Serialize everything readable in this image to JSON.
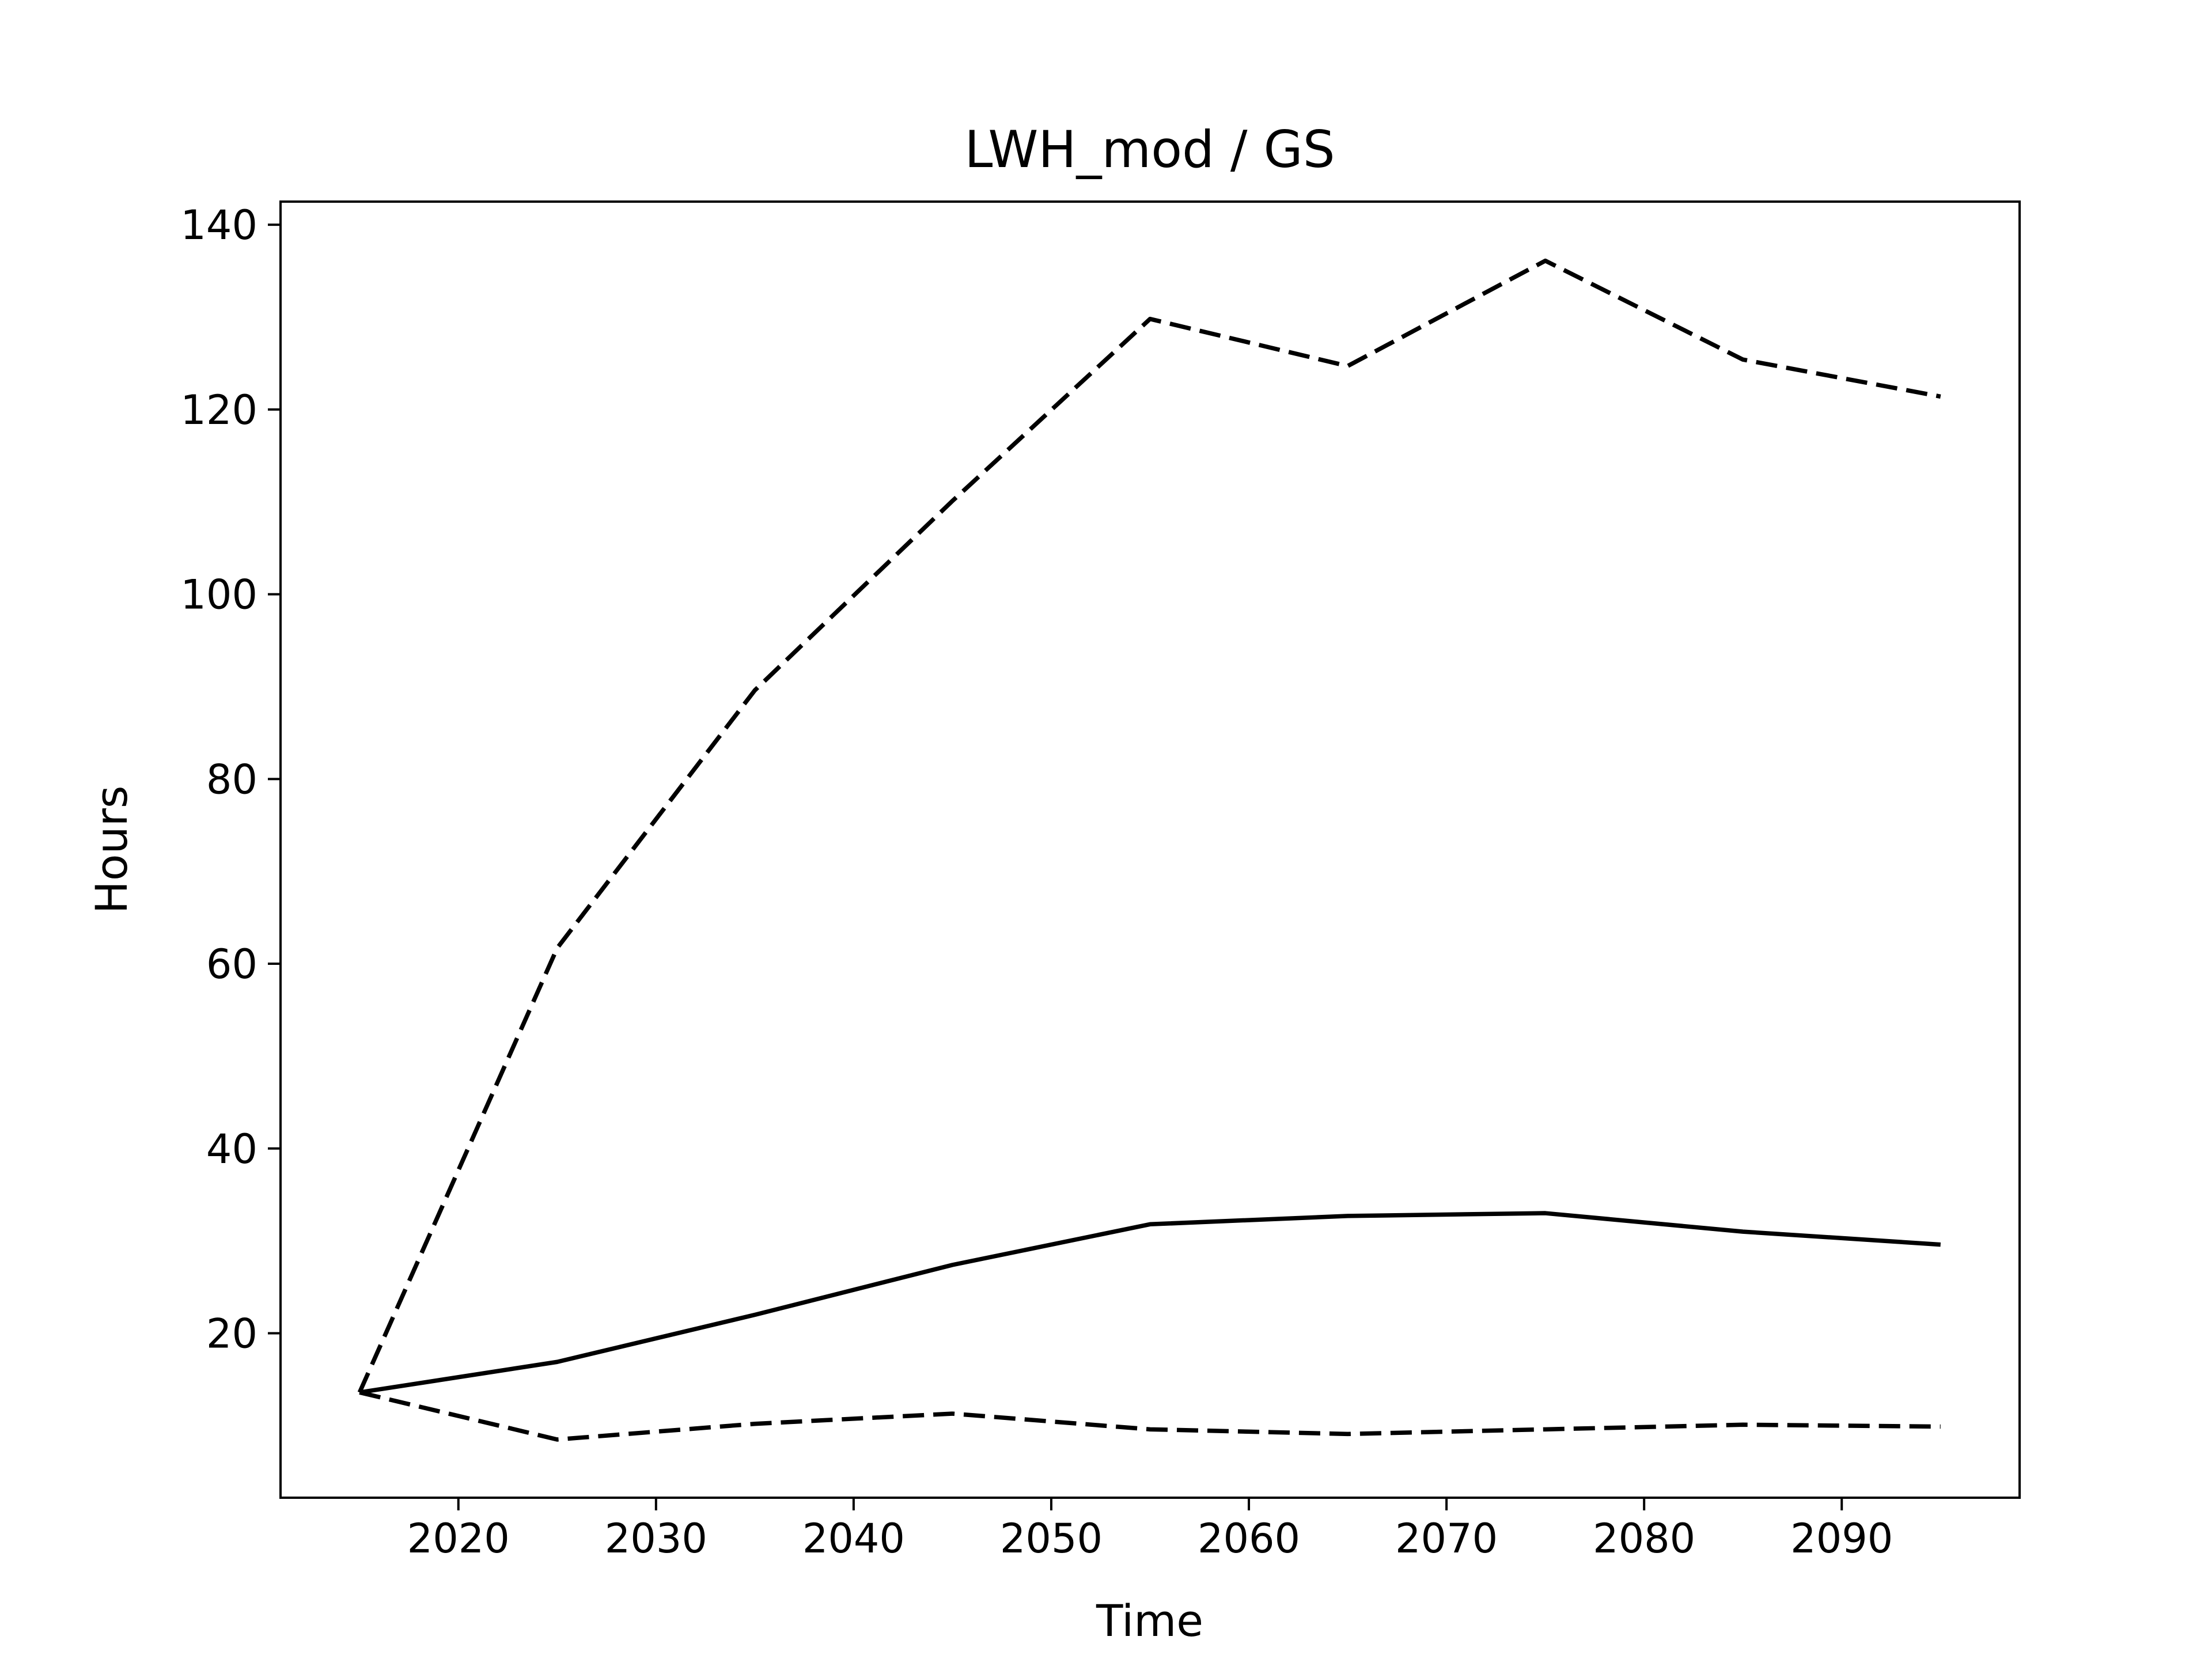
{
  "chart_data": {
    "type": "line",
    "title": "LWH_mod / GS",
    "x_label": "Time",
    "y_label": "Hours",
    "x": [
      2015,
      2025,
      2035,
      2045,
      2055,
      2065,
      2075,
      2085,
      2095
    ],
    "series": [
      {
        "color": "#000000",
        "style": "solid",
        "values": [
          13.6,
          16.9,
          22.0,
          27.4,
          31.8,
          32.7,
          33.0,
          31.0,
          29.6
        ]
      },
      {
        "color": "#000000",
        "style": "dashed",
        "values": [
          13.6,
          61.7,
          89.6,
          110.1,
          129.8,
          124.7,
          136.1,
          125.4,
          121.4
        ]
      },
      {
        "color": "#000000",
        "style": "dashed",
        "values": [
          13.6,
          8.5,
          10.2,
          11.3,
          9.6,
          9.1,
          9.6,
          10.1,
          9.9
        ]
      }
    ],
    "xlim": [
      2011,
      2099
    ],
    "ylim": [
      2.2,
      142.5
    ],
    "xticks": [
      2020,
      2030,
      2040,
      2050,
      2060,
      2070,
      2080,
      2090
    ],
    "yticks": [
      20,
      40,
      60,
      80,
      100,
      120,
      140
    ],
    "grid": false
  }
}
